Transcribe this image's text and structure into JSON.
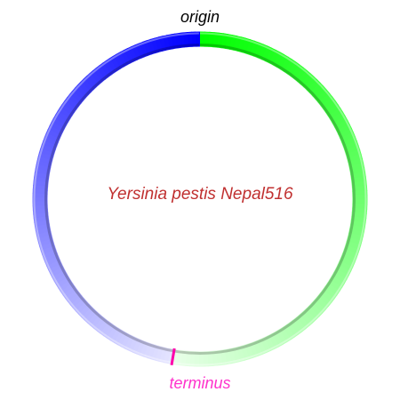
{
  "genome_name": "Yersinia pestis Nepal516",
  "origin_label": "origin",
  "terminus_label": "terminus",
  "terminus_position_fraction": 0.527,
  "colors": {
    "leading_strand_start": "#00ff00",
    "leading_strand_end": "#e8ffe8",
    "lagging_strand_start": "#0000ff",
    "lagging_strand_end": "#e4e4ff",
    "terminus_marker": "#ff00aa",
    "terminus_label": "#ff33cc",
    "genome_name": "#c03030",
    "origin_label": "#000000",
    "shadow": "#000000"
  }
}
